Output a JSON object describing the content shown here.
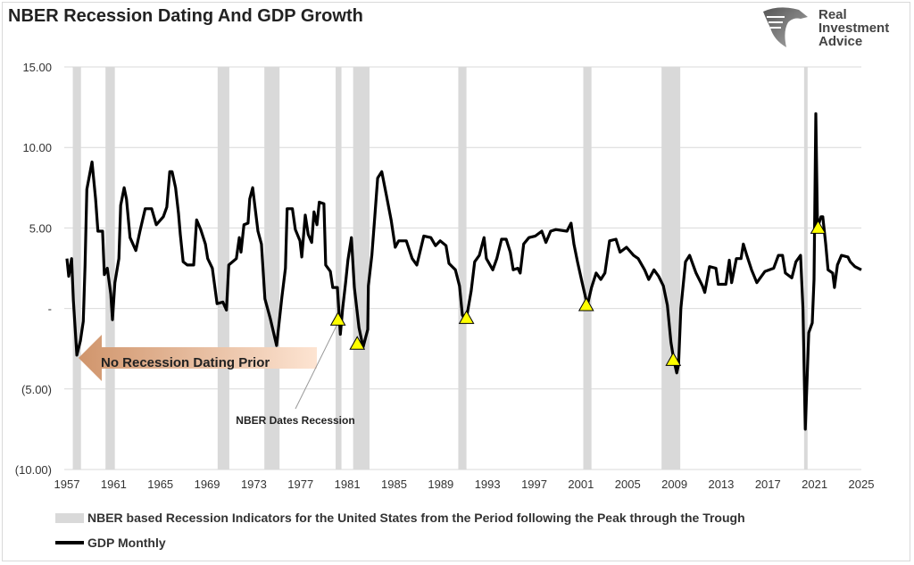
{
  "title": "NBER Recession Dating And GDP Growth",
  "logo": {
    "text_lines": [
      "Real",
      "Investment",
      "Advice"
    ],
    "icon": "eagle-icon"
  },
  "annotations": {
    "arrow_label": "No Recession Dating Prior",
    "callout_label": "NBER Dates Recession",
    "arrow_color": "#e8a77c"
  },
  "legend": {
    "band_label": "NBER based Recession Indicators for the United States from the Period following the Peak through the Trough",
    "line_label": "GDP Monthly"
  },
  "chart_data": {
    "type": "line",
    "xlabel": "",
    "ylabel": "",
    "xlim": [
      1957,
      2025
    ],
    "ylim": [
      -10,
      15
    ],
    "grid": true,
    "legend_position": "bottom",
    "x_tick_labels": [
      "1957",
      "1961",
      "1965",
      "1969",
      "1973",
      "1977",
      "1981",
      "1985",
      "1989",
      "1993",
      "1997",
      "2001",
      "2005",
      "2009",
      "2013",
      "2017",
      "2021",
      "2025"
    ],
    "y_ticks": [
      15,
      10,
      5,
      0,
      -5,
      -10
    ],
    "y_tick_labels": [
      "15.00",
      "10.00",
      "5.00",
      "-",
      "(5.00)",
      "(10.00)"
    ],
    "recession_bands": [
      [
        1957.5,
        1958.2
      ],
      [
        1960.3,
        1961.1
      ],
      [
        1969.9,
        1970.9
      ],
      [
        1973.9,
        1975.2
      ],
      [
        1980.0,
        1980.5
      ],
      [
        1981.5,
        1982.9
      ],
      [
        1990.5,
        1991.2
      ],
      [
        2001.2,
        2001.9
      ],
      [
        2007.9,
        2009.5
      ],
      [
        2020.1,
        2020.4
      ]
    ],
    "band_color": "#d9d9d9",
    "series": [
      {
        "name": "GDP Monthly",
        "color": "#000000",
        "points": [
          [
            1957.0,
            3.1
          ],
          [
            1957.15,
            2.0
          ],
          [
            1957.4,
            3.1
          ],
          [
            1957.55,
            0.5
          ],
          [
            1957.85,
            -2.9
          ],
          [
            1958.15,
            -2.0
          ],
          [
            1958.4,
            -0.8
          ],
          [
            1958.55,
            2.7
          ],
          [
            1958.7,
            7.4
          ],
          [
            1959.15,
            9.1
          ],
          [
            1959.45,
            6.8
          ],
          [
            1959.65,
            4.8
          ],
          [
            1960.05,
            4.8
          ],
          [
            1960.2,
            2.1
          ],
          [
            1960.45,
            2.5
          ],
          [
            1960.75,
            0.9
          ],
          [
            1960.9,
            -0.7
          ],
          [
            1961.1,
            1.6
          ],
          [
            1961.45,
            3.1
          ],
          [
            1961.6,
            6.4
          ],
          [
            1961.9,
            7.5
          ],
          [
            1962.1,
            6.8
          ],
          [
            1962.4,
            4.4
          ],
          [
            1962.9,
            3.6
          ],
          [
            1963.25,
            4.8
          ],
          [
            1963.7,
            6.2
          ],
          [
            1964.25,
            6.2
          ],
          [
            1964.65,
            5.2
          ],
          [
            1965.25,
            5.7
          ],
          [
            1965.55,
            6.3
          ],
          [
            1965.8,
            8.5
          ],
          [
            1966.0,
            8.5
          ],
          [
            1966.3,
            7.5
          ],
          [
            1966.55,
            5.9
          ],
          [
            1966.7,
            4.6
          ],
          [
            1966.95,
            2.9
          ],
          [
            1967.3,
            2.7
          ],
          [
            1967.85,
            2.7
          ],
          [
            1968.1,
            5.5
          ],
          [
            1968.45,
            4.9
          ],
          [
            1968.85,
            4.0
          ],
          [
            1969.05,
            3.1
          ],
          [
            1969.45,
            2.5
          ],
          [
            1969.85,
            0.3
          ],
          [
            1970.35,
            0.4
          ],
          [
            1970.65,
            -0.1
          ],
          [
            1970.85,
            2.7
          ],
          [
            1971.5,
            3.1
          ],
          [
            1971.75,
            4.4
          ],
          [
            1971.9,
            3.5
          ],
          [
            1972.15,
            5.2
          ],
          [
            1972.5,
            5.3
          ],
          [
            1972.65,
            6.8
          ],
          [
            1972.9,
            7.5
          ],
          [
            1973.1,
            6.3
          ],
          [
            1973.35,
            4.8
          ],
          [
            1973.65,
            4.0
          ],
          [
            1973.95,
            0.6
          ],
          [
            1974.4,
            -0.6
          ],
          [
            1974.95,
            -2.3
          ],
          [
            1975.4,
            0.7
          ],
          [
            1975.7,
            2.5
          ],
          [
            1975.85,
            6.2
          ],
          [
            1976.3,
            6.2
          ],
          [
            1976.55,
            4.9
          ],
          [
            1976.95,
            4.2
          ],
          [
            1977.1,
            3.2
          ],
          [
            1977.4,
            5.8
          ],
          [
            1977.65,
            4.6
          ],
          [
            1977.95,
            4.1
          ],
          [
            1978.15,
            6.0
          ],
          [
            1978.4,
            5.2
          ],
          [
            1978.6,
            6.6
          ],
          [
            1979.0,
            6.5
          ],
          [
            1979.15,
            2.7
          ],
          [
            1979.55,
            2.3
          ],
          [
            1979.75,
            1.3
          ],
          [
            1980.15,
            1.3
          ],
          [
            1980.4,
            -1.6
          ],
          [
            1980.6,
            0.0
          ],
          [
            1980.85,
            1.6
          ],
          [
            1981.05,
            3.0
          ],
          [
            1981.35,
            4.4
          ],
          [
            1981.6,
            1.3
          ],
          [
            1982.0,
            -1.2
          ],
          [
            1982.35,
            -2.4
          ],
          [
            1982.75,
            -1.3
          ],
          [
            1982.8,
            1.4
          ],
          [
            1983.1,
            3.3
          ],
          [
            1983.35,
            5.7
          ],
          [
            1983.6,
            8.1
          ],
          [
            1983.95,
            8.5
          ],
          [
            1984.35,
            7.0
          ],
          [
            1984.75,
            5.5
          ],
          [
            1985.1,
            3.8
          ],
          [
            1985.4,
            4.2
          ],
          [
            1986.05,
            4.2
          ],
          [
            1986.55,
            3.1
          ],
          [
            1986.95,
            2.7
          ],
          [
            1987.15,
            3.3
          ],
          [
            1987.55,
            4.5
          ],
          [
            1988.15,
            4.4
          ],
          [
            1988.55,
            3.9
          ],
          [
            1988.95,
            4.2
          ],
          [
            1989.45,
            3.9
          ],
          [
            1989.7,
            2.8
          ],
          [
            1990.25,
            2.4
          ],
          [
            1990.6,
            1.4
          ],
          [
            1990.85,
            -0.4
          ],
          [
            1991.15,
            -0.8
          ],
          [
            1991.6,
            1.1
          ],
          [
            1991.9,
            2.9
          ],
          [
            1992.3,
            3.3
          ],
          [
            1992.7,
            4.4
          ],
          [
            1992.9,
            3.1
          ],
          [
            1993.45,
            2.4
          ],
          [
            1993.8,
            3.1
          ],
          [
            1994.2,
            4.3
          ],
          [
            1994.6,
            4.3
          ],
          [
            1994.95,
            3.5
          ],
          [
            1995.2,
            2.4
          ],
          [
            1995.6,
            2.5
          ],
          [
            1995.8,
            2.2
          ],
          [
            1996.1,
            4.0
          ],
          [
            1996.55,
            4.4
          ],
          [
            1997.1,
            4.5
          ],
          [
            1997.65,
            4.8
          ],
          [
            1998.0,
            4.1
          ],
          [
            1998.4,
            4.8
          ],
          [
            1998.85,
            4.9
          ],
          [
            1999.8,
            4.8
          ],
          [
            2000.15,
            5.3
          ],
          [
            2000.4,
            4.0
          ],
          [
            2000.7,
            2.9
          ],
          [
            2001.1,
            1.6
          ],
          [
            2001.55,
            0.2
          ],
          [
            2001.9,
            1.3
          ],
          [
            2002.3,
            2.2
          ],
          [
            2002.7,
            1.8
          ],
          [
            2003.05,
            2.2
          ],
          [
            2003.45,
            4.2
          ],
          [
            2004.0,
            4.3
          ],
          [
            2004.35,
            3.5
          ],
          [
            2004.9,
            3.8
          ],
          [
            2005.5,
            3.3
          ],
          [
            2005.9,
            3.1
          ],
          [
            2006.45,
            2.4
          ],
          [
            2006.8,
            1.8
          ],
          [
            2007.25,
            2.4
          ],
          [
            2007.65,
            2.0
          ],
          [
            2008.05,
            1.4
          ],
          [
            2008.4,
            0.2
          ],
          [
            2008.7,
            -2.1
          ],
          [
            2008.95,
            -3.2
          ],
          [
            2009.2,
            -4.0
          ],
          [
            2009.35,
            -3.5
          ],
          [
            2009.55,
            0.0
          ],
          [
            2009.95,
            2.9
          ],
          [
            2010.3,
            3.3
          ],
          [
            2010.85,
            2.2
          ],
          [
            2011.4,
            1.4
          ],
          [
            2011.6,
            1.0
          ],
          [
            2012.0,
            2.6
          ],
          [
            2012.55,
            2.5
          ],
          [
            2012.75,
            1.5
          ],
          [
            2013.4,
            1.5
          ],
          [
            2013.7,
            3.0
          ],
          [
            2013.9,
            1.6
          ],
          [
            2014.3,
            3.1
          ],
          [
            2014.7,
            3.1
          ],
          [
            2014.9,
            4.0
          ],
          [
            2015.2,
            3.3
          ],
          [
            2015.6,
            2.4
          ],
          [
            2016.05,
            1.6
          ],
          [
            2016.75,
            2.3
          ],
          [
            2017.5,
            2.5
          ],
          [
            2017.9,
            3.3
          ],
          [
            2018.25,
            3.3
          ],
          [
            2018.5,
            2.2
          ],
          [
            2019.05,
            1.9
          ],
          [
            2019.4,
            2.9
          ],
          [
            2019.8,
            3.3
          ],
          [
            2020.0,
            0.0
          ],
          [
            2020.2,
            -7.5
          ],
          [
            2020.5,
            -1.5
          ],
          [
            2020.8,
            -0.9
          ],
          [
            2020.95,
            1.8
          ],
          [
            2021.1,
            12.1
          ],
          [
            2021.25,
            5.0
          ],
          [
            2021.55,
            5.7
          ],
          [
            2021.7,
            5.7
          ],
          [
            2021.95,
            4.0
          ],
          [
            2022.15,
            2.4
          ],
          [
            2022.55,
            2.2
          ],
          [
            2022.7,
            1.3
          ],
          [
            2022.95,
            2.7
          ],
          [
            2023.3,
            3.3
          ],
          [
            2023.85,
            3.2
          ],
          [
            2024.05,
            2.9
          ],
          [
            2024.45,
            2.6
          ],
          [
            2025.0,
            2.4
          ]
        ]
      }
    ],
    "recession_dating_markers": {
      "color": "#ffff00",
      "points": [
        [
          1980.2,
          -0.7
        ],
        [
          1981.85,
          -2.2
        ],
        [
          1991.2,
          -0.6
        ],
        [
          2001.45,
          0.2
        ],
        [
          2008.9,
          -3.2
        ],
        [
          2021.3,
          5.0
        ]
      ]
    }
  }
}
